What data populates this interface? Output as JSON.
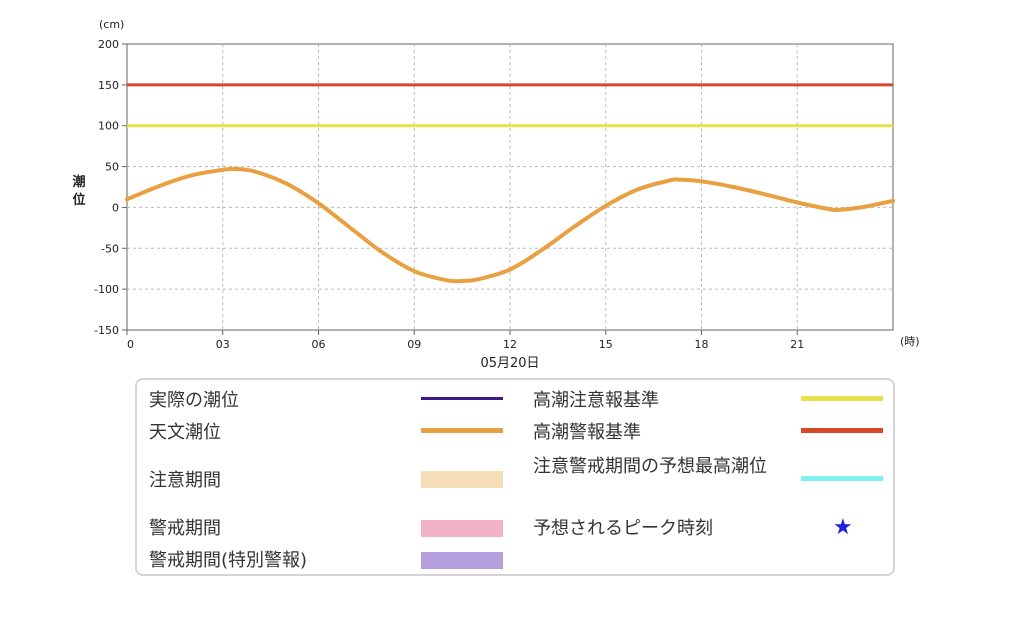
{
  "chart_data": {
    "type": "line",
    "y_unit": "(cm)",
    "x_unit": "(時)",
    "ylabel": "潮位",
    "xlabel": "05月20日",
    "ylim": [
      -150,
      200
    ],
    "xlim": [
      0,
      24
    ],
    "y_ticks": [
      "200",
      "150",
      "100",
      "50",
      "0",
      "-50",
      "-100",
      "-150"
    ],
    "x_ticks": [
      "0",
      "03",
      "06",
      "09",
      "12",
      "15",
      "18",
      "21"
    ],
    "grid": true,
    "thresholds": [
      {
        "name": "高潮警報基準",
        "value": 150,
        "color": "#d9472b"
      },
      {
        "name": "高潮注意報基準",
        "value": 100,
        "color": "#e8e04a"
      }
    ],
    "series": [
      {
        "name": "天文潮位",
        "color": "#e8a040",
        "x": [
          0,
          1,
          2,
          3,
          3.4,
          4,
          5,
          6,
          7,
          8,
          9,
          10,
          10.5,
          11,
          12,
          13,
          14,
          15,
          16,
          17,
          17.3,
          18,
          19,
          20,
          21,
          22,
          22.3,
          23,
          24
        ],
        "y": [
          10,
          26,
          39,
          46,
          47,
          44,
          29,
          5,
          -25,
          -55,
          -78,
          -89,
          -90,
          -88,
          -76,
          -52,
          -24,
          2,
          22,
          33,
          34,
          32,
          25,
          16,
          6,
          -2,
          -3,
          0,
          8
        ]
      }
    ]
  },
  "legend": {
    "items": [
      {
        "label": "実際の潮位",
        "color": "#3a1a8a",
        "kind": "line"
      },
      {
        "label": "天文潮位",
        "color": "#e8a040",
        "kind": "line"
      },
      {
        "label": "注意期間",
        "color": "#f7ddb8",
        "kind": "box"
      },
      {
        "label": "警戒期間",
        "color": "#f2b3c9",
        "kind": "box"
      },
      {
        "label": "警戒期間(特別警報)",
        "color": "#b49fdc",
        "kind": "box"
      },
      {
        "label": "高潮注意報基準",
        "color": "#e8e04a",
        "kind": "line"
      },
      {
        "label": "高潮警報基準",
        "color": "#d9472b",
        "kind": "line"
      },
      {
        "label": "注意警戒期間の予想最高潮位",
        "color": "#7ef0f0",
        "kind": "line"
      },
      {
        "label": "予想されるピーク時刻",
        "color": "#1f1fe0",
        "kind": "star",
        "symbol": "★"
      }
    ]
  }
}
